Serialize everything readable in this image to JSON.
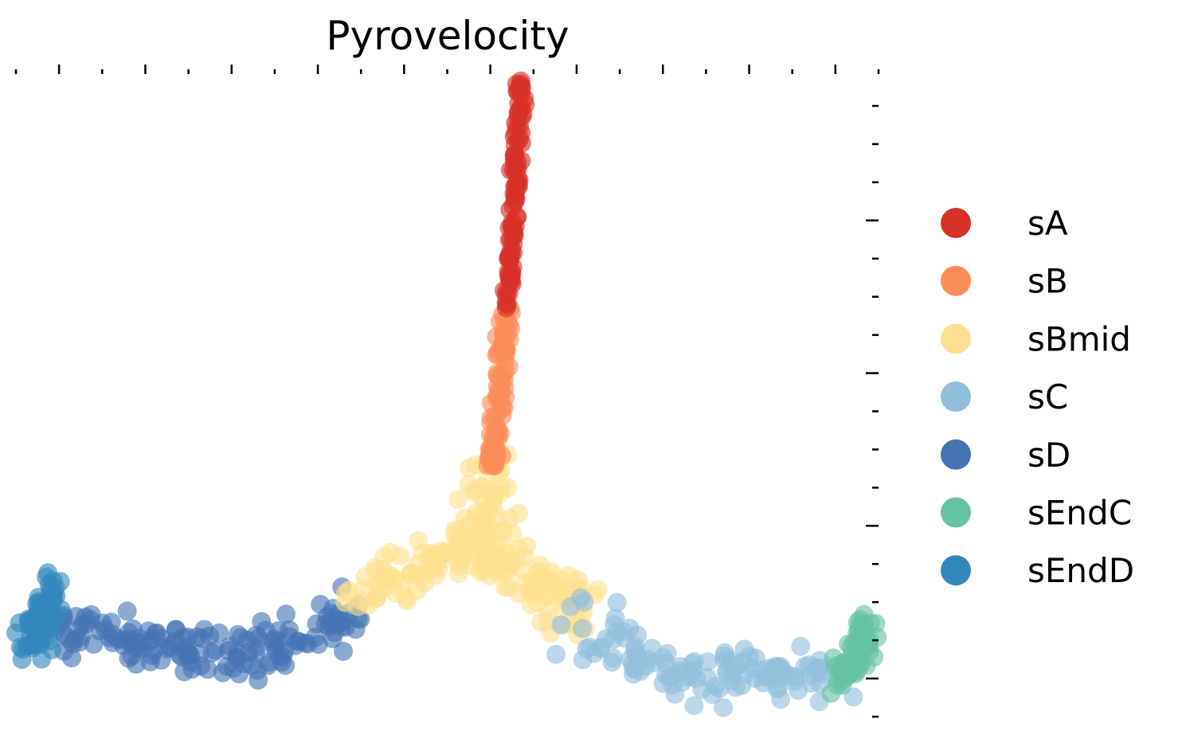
{
  "chart_data": {
    "type": "scatter",
    "title": "Pyrovelocity",
    "xlabel": "",
    "ylabel": "",
    "xlim": [
      0,
      100
    ],
    "ylim": [
      0,
      100
    ],
    "xaxis": {
      "position": "top",
      "tick_labels": "none",
      "ticks": "major and minor"
    },
    "yaxis": {
      "position": "right",
      "tick_labels": "none",
      "ticks": "major and minor"
    },
    "grid": false,
    "legend": {
      "placement": "right"
    },
    "series": [
      {
        "name": "sA",
        "color": "#d73027",
        "trajectory": [
          [
            58.5,
            99.5
          ],
          [
            58.5,
            95
          ],
          [
            58.2,
            89
          ],
          [
            58.0,
            84
          ],
          [
            57.8,
            79
          ],
          [
            57.5,
            74
          ],
          [
            57.2,
            69
          ],
          [
            56.9,
            64
          ]
        ]
      },
      {
        "name": "sB",
        "color": "#fc8d59",
        "trajectory": [
          [
            56.9,
            64
          ],
          [
            56.7,
            59
          ],
          [
            56.5,
            55
          ],
          [
            56.2,
            50
          ],
          [
            55.8,
            46
          ],
          [
            55.3,
            42
          ],
          [
            54.8,
            38
          ]
        ]
      },
      {
        "name": "sBmid",
        "color": "#fee090",
        "trajectory": [
          [
            54.8,
            38
          ],
          [
            54.5,
            34
          ],
          [
            54.0,
            30
          ],
          [
            53.5,
            27
          ],
          [
            52.0,
            25.5
          ],
          [
            49.0,
            25
          ],
          [
            46.0,
            23
          ],
          [
            43.0,
            21
          ],
          [
            40.0,
            18
          ]
        ],
        "branch": [
          [
            53.5,
            27
          ],
          [
            56.0,
            24
          ],
          [
            59.0,
            22
          ],
          [
            62.0,
            20
          ],
          [
            64.5,
            18
          ],
          [
            66.0,
            15
          ]
        ]
      },
      {
        "name": "sC",
        "color": "#91bfdb",
        "trajectory": [
          [
            65.0,
            14
          ],
          [
            68.0,
            12
          ],
          [
            71.0,
            11
          ],
          [
            74.0,
            9
          ],
          [
            77.0,
            7
          ],
          [
            80.0,
            6
          ],
          [
            83.0,
            8
          ],
          [
            86.0,
            7
          ],
          [
            89.0,
            5
          ],
          [
            92.0,
            7
          ],
          [
            95.0,
            6
          ]
        ]
      },
      {
        "name": "sD",
        "color": "#4575b4",
        "trajectory": [
          [
            40.0,
            18
          ],
          [
            37.0,
            15
          ],
          [
            34.0,
            13
          ],
          [
            31.0,
            11
          ],
          [
            28.0,
            10
          ],
          [
            25.0,
            9
          ],
          [
            22.0,
            10
          ],
          [
            19.0,
            11
          ],
          [
            16.0,
            12
          ],
          [
            13.0,
            12
          ],
          [
            10.0,
            13
          ],
          [
            7.0,
            13
          ],
          [
            4.5,
            14
          ]
        ]
      },
      {
        "name": "sEndC",
        "color": "#66c2a5",
        "trajectory": [
          [
            95.5,
            6
          ],
          [
            96.5,
            7
          ],
          [
            97.3,
            9
          ],
          [
            98.0,
            11
          ],
          [
            98.5,
            13
          ],
          [
            98.8,
            15
          ]
        ]
      },
      {
        "name": "sEndD",
        "color": "#3288bd",
        "trajectory": [
          [
            1.0,
            11
          ],
          [
            2.0,
            13
          ],
          [
            3.0,
            14
          ],
          [
            3.5,
            16
          ],
          [
            4.0,
            18
          ],
          [
            4.5,
            20
          ]
        ]
      }
    ]
  }
}
